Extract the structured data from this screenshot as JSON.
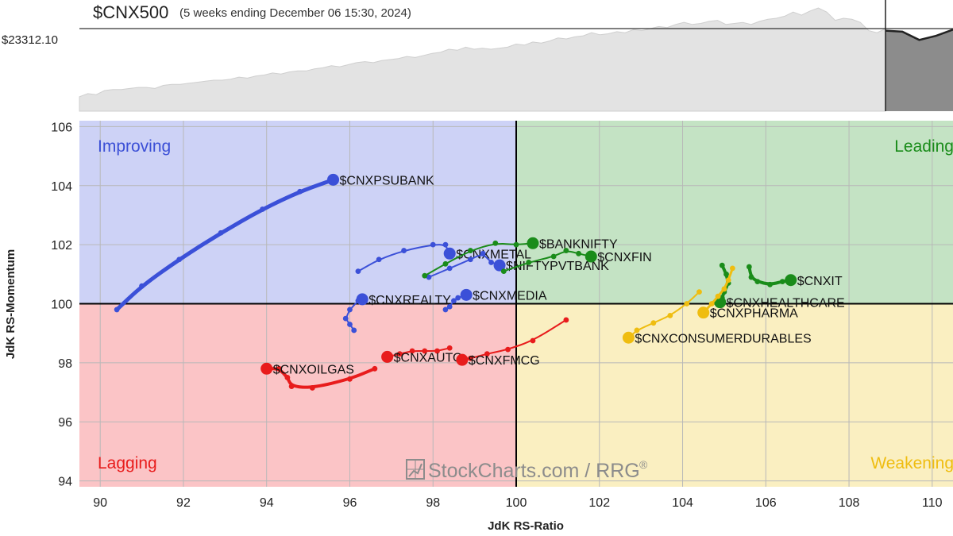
{
  "header": {
    "symbol": "$CNX500",
    "period": "(5 weeks ending December 06 15:30, 2024)",
    "price_label": "$23312.10"
  },
  "price_chart": {
    "history": [
      14,
      17,
      16,
      20,
      21,
      21,
      22,
      23,
      23,
      22,
      25,
      26,
      26,
      27,
      28,
      29,
      30,
      30,
      31,
      33,
      32,
      34,
      35,
      37,
      36,
      38,
      39,
      39,
      41,
      42,
      44,
      43,
      45,
      47,
      48,
      47,
      49,
      50,
      51,
      53,
      52,
      54,
      56,
      57,
      60,
      59,
      62,
      60,
      61,
      60,
      61,
      62,
      65,
      64,
      67,
      66,
      68,
      71,
      70,
      72,
      73,
      76,
      74,
      75,
      77,
      76,
      79,
      78,
      80,
      82,
      81,
      84,
      86,
      84,
      85,
      87,
      88,
      84,
      85,
      86,
      84,
      87,
      89,
      90,
      92,
      96,
      93,
      97,
      100,
      96,
      88,
      90,
      89,
      86,
      78,
      76,
      80
    ],
    "recent": [
      78,
      77,
      69,
      73,
      79
    ],
    "reference_level": 0.8,
    "fill_color": "#e3e3e3",
    "recent_fill_color": "#8c8c8c"
  },
  "watermark": {
    "text": "StockCharts.com / RRG",
    "mark": "®"
  },
  "chart_data": {
    "type": "scatter",
    "title": "",
    "xlabel": "JdK RS-Ratio",
    "ylabel": "JdK RS-Momentum",
    "xlim": [
      89.5,
      110.5
    ],
    "ylim": [
      93.8,
      106.2
    ],
    "xticks": [
      90,
      92,
      94,
      96,
      98,
      100,
      102,
      104,
      106,
      108,
      110
    ],
    "xtick_labels": [
      "90",
      "92",
      "94",
      "96",
      "98",
      "100",
      "102",
      "104",
      "106",
      "108",
      "110"
    ],
    "yticks": [
      94,
      96,
      98,
      100,
      102,
      104,
      106
    ],
    "ytick_labels": [
      "94",
      "96",
      "98",
      "100",
      "102",
      "104",
      "106"
    ],
    "grid": true,
    "center": [
      100,
      100
    ],
    "quadrants": [
      {
        "name": "Improving",
        "color": "#3b4fd6",
        "fill": "#cdd2f6",
        "position": "top-left"
      },
      {
        "name": "Leading",
        "color": "#1a8c1a",
        "fill": "#c4e3c4",
        "position": "top-right"
      },
      {
        "name": "Lagging",
        "color": "#e81c1c",
        "fill": "#fbc4c6",
        "position": "bottom-left"
      },
      {
        "name": "Weakening",
        "color": "#efbd10",
        "fill": "#faefc1",
        "position": "bottom-right"
      }
    ],
    "series": [
      {
        "name": "$CNXPSUBANK",
        "color": "#3b50d8",
        "width": 5,
        "x": [
          90.4,
          91.0,
          91.9,
          92.9,
          93.9,
          94.8,
          95.6
        ],
        "y": [
          99.8,
          100.6,
          101.5,
          102.4,
          103.2,
          103.8,
          104.2
        ]
      },
      {
        "name": "$CNXMETAL",
        "color": "#3b50d8",
        "width": 2,
        "x": [
          96.2,
          96.7,
          97.3,
          98.0,
          98.3,
          98.4
        ],
        "y": [
          101.1,
          101.5,
          101.8,
          102.0,
          102.0,
          101.7
        ]
      },
      {
        "name": "$NIFTYPVTBANK",
        "color": "#3b50d8",
        "width": 2,
        "x": [
          97.9,
          98.4,
          98.9,
          99.2,
          99.4,
          99.6
        ],
        "y": [
          100.9,
          101.2,
          101.5,
          101.7,
          101.4,
          101.3
        ]
      },
      {
        "name": "$CNXREALTY",
        "color": "#3b50d8",
        "width": 2,
        "x": [
          96.1,
          96.0,
          95.9,
          96.0,
          96.2,
          96.3
        ],
        "y": [
          99.1,
          99.3,
          99.5,
          99.8,
          100.1,
          100.15
        ]
      },
      {
        "name": "$CNXMEDIA",
        "color": "#3b50d8",
        "width": 2,
        "x": [
          98.3,
          98.4,
          98.5,
          98.6,
          98.8
        ],
        "y": [
          99.8,
          99.9,
          100.1,
          100.2,
          100.3
        ]
      },
      {
        "name": "$BANKNIFTY",
        "color": "#1a8c1a",
        "width": 2,
        "x": [
          97.8,
          98.3,
          98.9,
          99.5,
          100.0,
          100.4
        ],
        "y": [
          100.95,
          101.35,
          101.8,
          102.05,
          102.0,
          102.05
        ]
      },
      {
        "name": "$CNXFIN",
        "color": "#1a8c1a",
        "width": 2,
        "x": [
          99.7,
          100.3,
          100.9,
          101.2,
          101.5,
          101.8
        ],
        "y": [
          101.1,
          101.4,
          101.6,
          101.8,
          101.7,
          101.6
        ]
      },
      {
        "name": "$CNXIT",
        "color": "#1a8c1a",
        "width": 4,
        "x": [
          105.6,
          105.65,
          105.8,
          106.1,
          106.4,
          106.6
        ],
        "y": [
          101.25,
          100.9,
          100.75,
          100.65,
          100.75,
          100.8
        ]
      },
      {
        "name": "$CNXHEALTHCARE",
        "color": "#1a8c1a",
        "width": 4,
        "x": [
          104.95,
          105.05,
          105.1,
          105.0,
          104.95,
          104.9
        ],
        "y": [
          101.3,
          101.0,
          100.7,
          100.4,
          100.2,
          100.05
        ]
      },
      {
        "name": "$CNXPHARMA",
        "color": "#efbd10",
        "width": 3,
        "x": [
          105.2,
          105.1,
          105.0,
          104.85,
          104.7,
          104.5
        ],
        "y": [
          101.2,
          100.8,
          100.5,
          100.25,
          100.0,
          99.7
        ]
      },
      {
        "name": "$CNXCONSUMERDURABLES",
        "color": "#efbd10",
        "width": 2,
        "x": [
          104.4,
          104.1,
          103.7,
          103.3,
          102.9,
          102.7
        ],
        "y": [
          100.4,
          100.0,
          99.6,
          99.35,
          99.1,
          98.85
        ]
      },
      {
        "name": "$CNXOILGAS",
        "color": "#e81c1c",
        "width": 4,
        "x": [
          96.6,
          96.0,
          95.1,
          94.6,
          94.5,
          94.3,
          94.0
        ],
        "y": [
          97.8,
          97.45,
          97.15,
          97.2,
          97.5,
          97.8,
          97.8
        ]
      },
      {
        "name": "$CNXAUTO",
        "color": "#e81c1c",
        "width": 2,
        "x": [
          98.4,
          98.1,
          97.8,
          97.5,
          97.2,
          96.9
        ],
        "y": [
          98.5,
          98.4,
          98.4,
          98.4,
          98.3,
          98.2
        ]
      },
      {
        "name": "$CNXFMCG",
        "color": "#e81c1c",
        "width": 2,
        "x": [
          101.2,
          100.4,
          99.8,
          99.3,
          98.9,
          98.7
        ],
        "y": [
          99.45,
          98.75,
          98.45,
          98.3,
          98.15,
          98.1
        ]
      }
    ]
  }
}
